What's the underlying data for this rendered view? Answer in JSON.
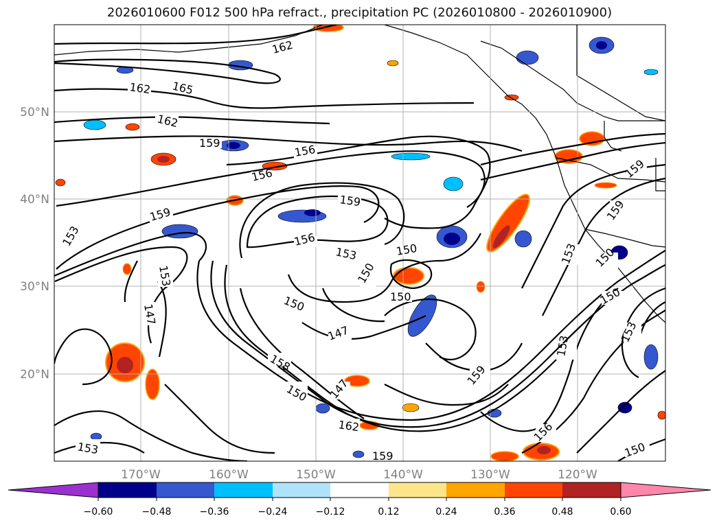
{
  "title": "2026010600 F012 500 hPa refract., precipitation PC (2026010800 - 2026010900)",
  "lat_ticks": [
    "50°N",
    "40°N",
    "30°N",
    "20°N"
  ],
  "lon_ticks": [
    "170°W",
    "160°W",
    "150°W",
    "140°W",
    "130°W",
    "120°W"
  ],
  "contour_labels": [
    "162",
    "165",
    "162",
    "162",
    "159",
    "156",
    "156",
    "159",
    "159",
    "156",
    "153",
    "153",
    "150",
    "150",
    "150",
    "153",
    "150",
    "147",
    "147",
    "158",
    "150",
    "147",
    "159",
    "162",
    "159",
    "156",
    "153",
    "150",
    "159",
    "153",
    "150",
    "153",
    "150",
    "159",
    "153"
  ],
  "colorbar": {
    "ticks": [
      "−0.60",
      "−0.48",
      "−0.36",
      "−0.24",
      "−0.12",
      "0.12",
      "0.24",
      "0.36",
      "0.48",
      "0.60"
    ],
    "colors": [
      "#9b30d0",
      "#00008b",
      "#3558d0",
      "#00bfff",
      "#aee3fa",
      "#ffffff",
      "#fde68a",
      "#ffa500",
      "#ff4500",
      "#b22222",
      "#ff87ab"
    ]
  },
  "fill_colors": {
    "neg_light": "#aee3fa",
    "neg_mid": "#00bfff",
    "neg_dark": "#3558d0",
    "neg_darkest": "#00008b",
    "pos_light": "#fde68a",
    "pos_mid": "#ffa500",
    "pos_strong": "#ff4500",
    "pos_dark": "#b22222"
  }
}
